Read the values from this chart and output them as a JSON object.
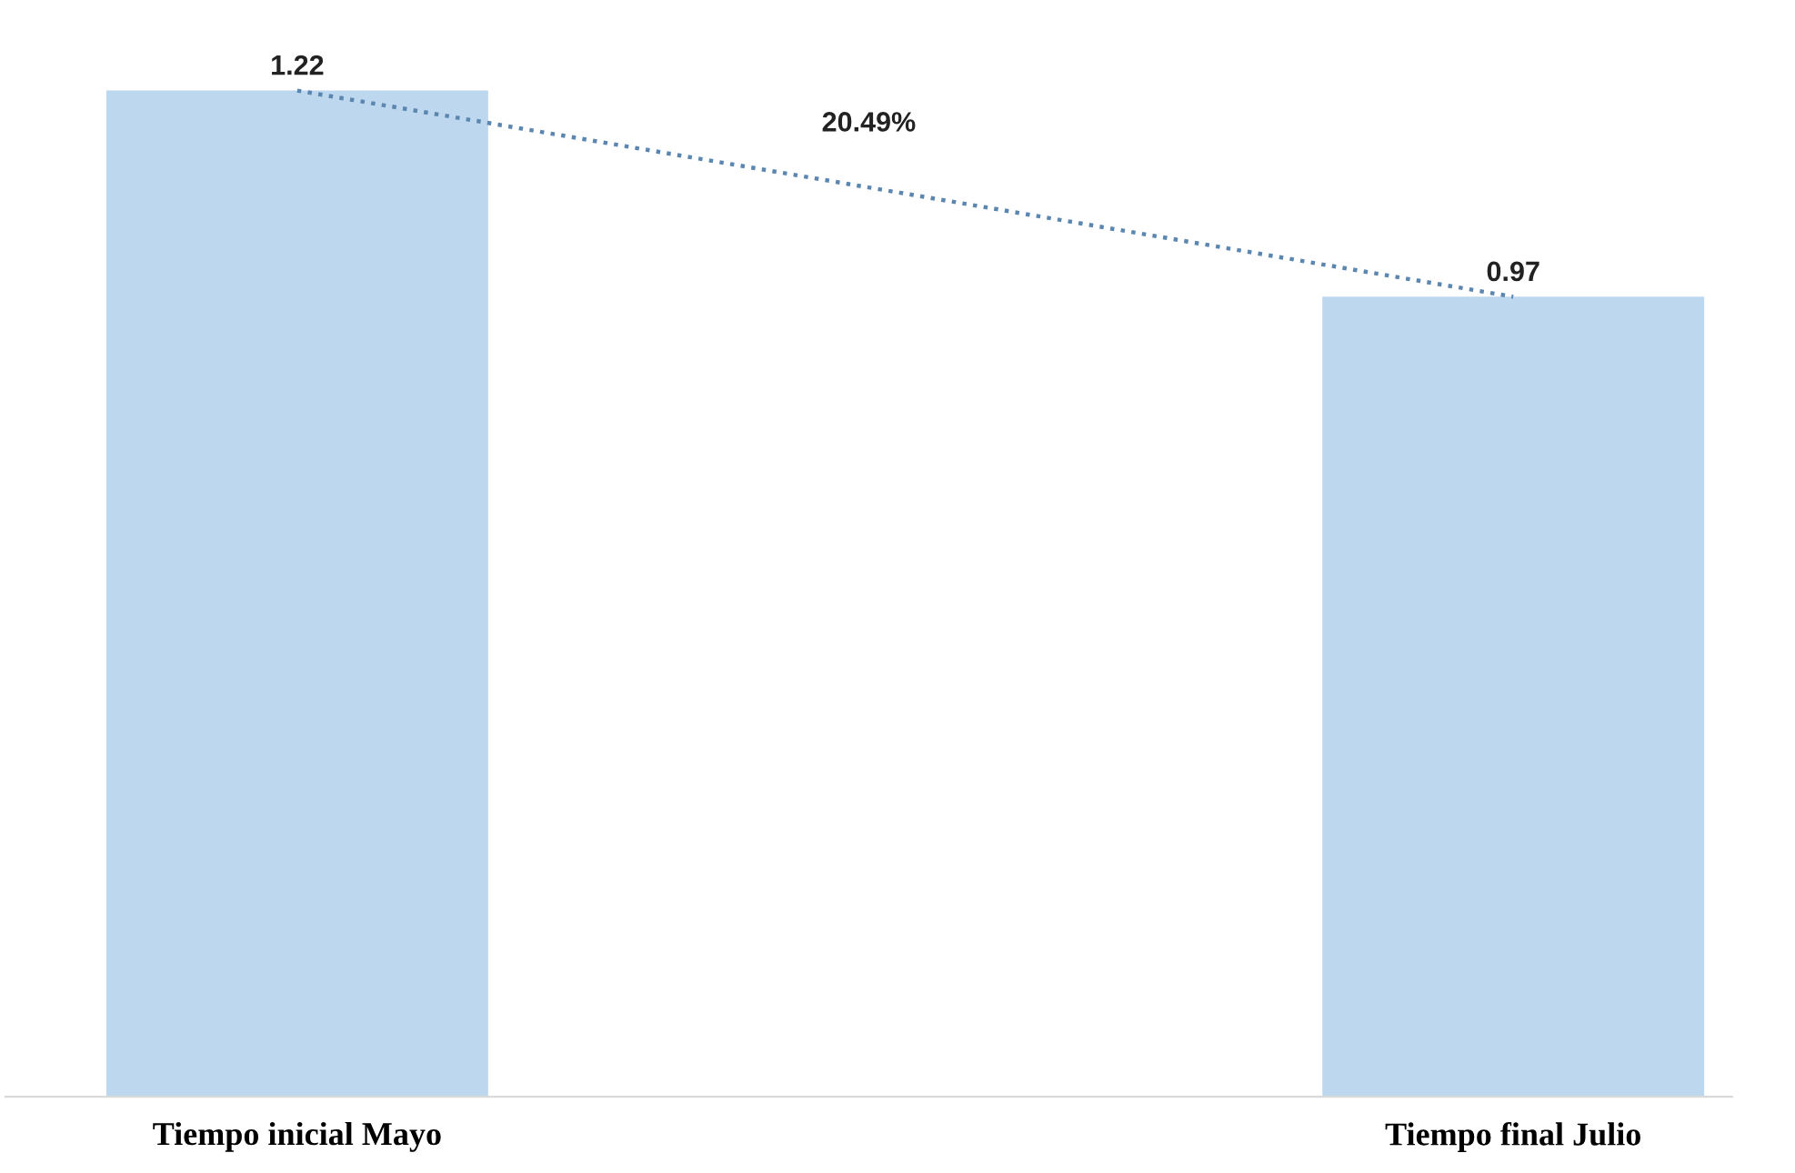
{
  "chart_data": {
    "type": "bar",
    "categories": [
      "Tiempo inicial Mayo",
      "Tiempo final Julio"
    ],
    "series": [
      {
        "color": "#bdd7ee",
        "values": [
          1.22,
          0.97
        ],
        "value_labels": [
          "1.22",
          "0.97"
        ]
      },
      {
        "type": "line",
        "color": "#5b86b0",
        "line_style": "dotted",
        "values": [
          1.22,
          0.97
        ]
      }
    ],
    "annotations": [
      "20.49%"
    ],
    "grid": false,
    "legend": false
  }
}
